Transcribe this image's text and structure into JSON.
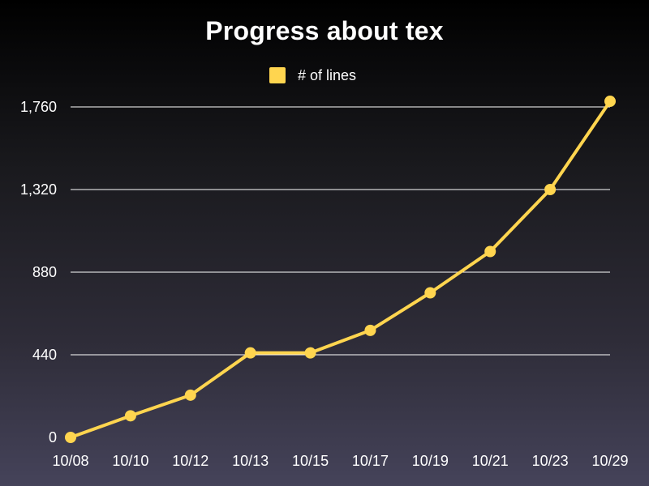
{
  "chart_data": {
    "type": "line",
    "title": "Progress about tex",
    "xlabel": "",
    "ylabel": "",
    "categories": [
      "10/08",
      "10/10",
      "10/12",
      "10/13",
      "10/15",
      "10/17",
      "10/19",
      "10/21",
      "10/23",
      "10/29"
    ],
    "series": [
      {
        "name": "# of lines",
        "values": [
          0,
          115,
          225,
          450,
          450,
          570,
          770,
          990,
          1320,
          1790
        ],
        "color": "#ffd54f"
      }
    ],
    "ylim": [
      0,
      1760
    ],
    "yticks": [
      0,
      440,
      880,
      1320,
      1760
    ],
    "ytick_labels": [
      "0",
      "440",
      "880",
      "1,320",
      "1,760"
    ],
    "grid": true,
    "legend": "top-center"
  }
}
